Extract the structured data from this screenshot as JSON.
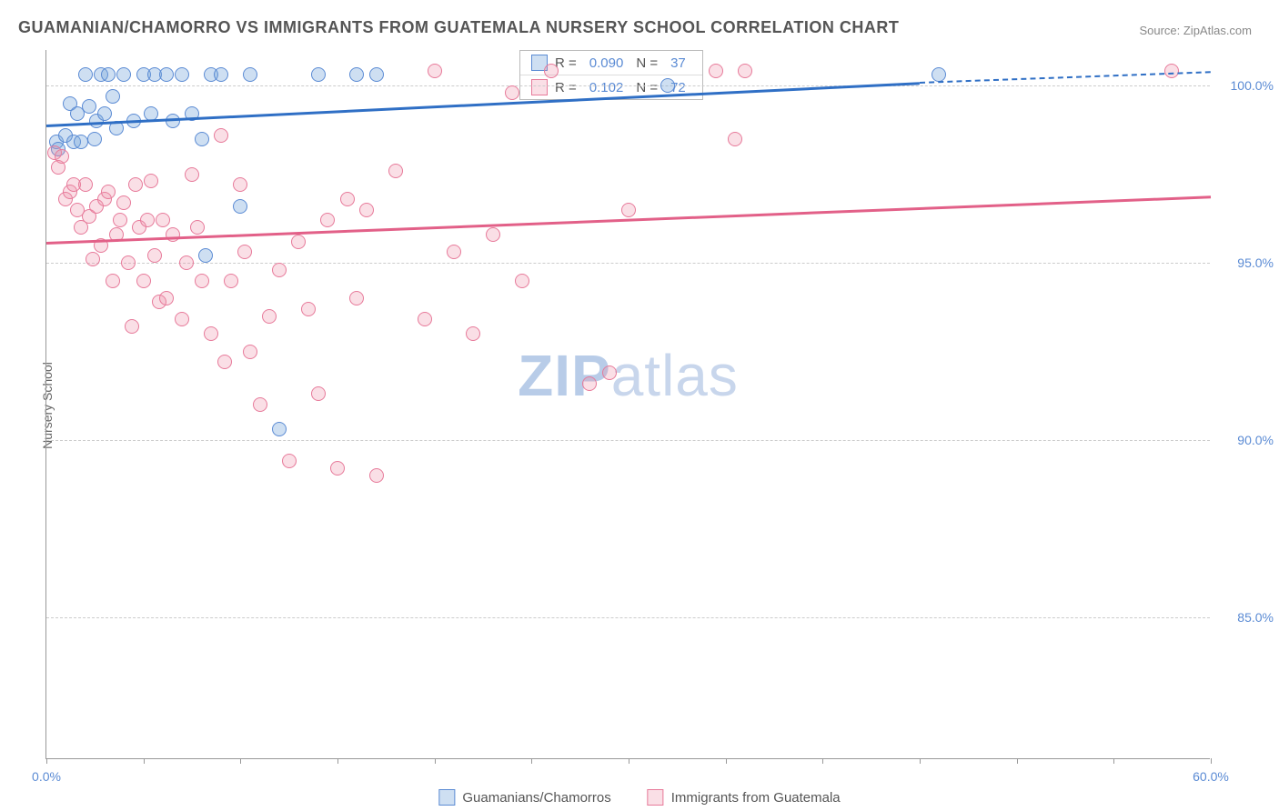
{
  "title": "GUAMANIAN/CHAMORRO VS IMMIGRANTS FROM GUATEMALA NURSERY SCHOOL CORRELATION CHART",
  "source_label": "Source: ",
  "source_link": "ZipAtlas.com",
  "y_axis_label": "Nursery School",
  "watermark_bold": "ZIP",
  "watermark_rest": "atlas",
  "plot": {
    "x_min": 0.0,
    "x_max": 60.0,
    "y_min": 81.0,
    "y_max": 101.0,
    "x_ticks": [
      0.0,
      5,
      10,
      15,
      20,
      25,
      30,
      35,
      40,
      45,
      50,
      55,
      60.0
    ],
    "y_gridlines": [
      85.0,
      90.0,
      95.0,
      100.0
    ],
    "x_tick_labels": [
      {
        "value": 0.0,
        "label": "0.0%"
      },
      {
        "value": 60.0,
        "label": "60.0%"
      }
    ],
    "y_tick_labels": [
      {
        "value": 85.0,
        "label": "85.0%"
      },
      {
        "value": 90.0,
        "label": "90.0%"
      },
      {
        "value": 95.0,
        "label": "95.0%"
      },
      {
        "value": 100.0,
        "label": "100.0%"
      }
    ]
  },
  "colors": {
    "blue_fill": "rgba(116,164,218,0.35)",
    "blue_stroke": "#5b8bd4",
    "pink_fill": "rgba(238,140,165,0.28)",
    "pink_stroke": "#e77a9a",
    "blue_line": "#2f6fc5",
    "pink_line": "#e26088",
    "title_color": "#555555",
    "axis_label_color": "#5b8bd4"
  },
  "series": [
    {
      "key": "blue",
      "legend_label": "Guamanians/Chamorros",
      "stats": {
        "R_label": "R =",
        "R": "0.090",
        "N_label": "N =",
        "N": "37"
      },
      "trend": {
        "y_at_x0": 98.9,
        "y_at_x45": 100.1,
        "dash_to_x": 60,
        "dash_to_y": 100.4
      },
      "points": [
        [
          0.5,
          98.4
        ],
        [
          0.6,
          98.2
        ],
        [
          1.0,
          98.6
        ],
        [
          1.2,
          99.5
        ],
        [
          1.4,
          98.4
        ],
        [
          1.6,
          99.2
        ],
        [
          1.8,
          98.4
        ],
        [
          2.0,
          100.3
        ],
        [
          2.2,
          99.4
        ],
        [
          2.5,
          98.5
        ],
        [
          2.6,
          99.0
        ],
        [
          2.8,
          100.3
        ],
        [
          3.0,
          99.2
        ],
        [
          3.2,
          100.3
        ],
        [
          3.4,
          99.7
        ],
        [
          3.6,
          98.8
        ],
        [
          4.0,
          100.3
        ],
        [
          4.5,
          99.0
        ],
        [
          5.0,
          100.3
        ],
        [
          5.4,
          99.2
        ],
        [
          5.6,
          100.3
        ],
        [
          6.2,
          100.3
        ],
        [
          6.5,
          99.0
        ],
        [
          7.0,
          100.3
        ],
        [
          7.5,
          99.2
        ],
        [
          8.0,
          98.5
        ],
        [
          8.2,
          95.2
        ],
        [
          8.5,
          100.3
        ],
        [
          9.0,
          100.3
        ],
        [
          10.0,
          96.6
        ],
        [
          10.5,
          100.3
        ],
        [
          12.0,
          90.3
        ],
        [
          14.0,
          100.3
        ],
        [
          16.0,
          100.3
        ],
        [
          17.0,
          100.3
        ],
        [
          32.0,
          100.0
        ],
        [
          46.0,
          100.3
        ]
      ]
    },
    {
      "key": "pink",
      "legend_label": "Immigrants from Guatemala",
      "stats": {
        "R_label": "R =",
        "R": "0.102",
        "N_label": "N =",
        "N": "72"
      },
      "trend": {
        "y_at_x0": 95.6,
        "y_at_x60": 96.9
      },
      "points": [
        [
          0.4,
          98.1
        ],
        [
          0.6,
          97.7
        ],
        [
          0.8,
          98.0
        ],
        [
          1.0,
          96.8
        ],
        [
          1.2,
          97.0
        ],
        [
          1.4,
          97.2
        ],
        [
          1.6,
          96.5
        ],
        [
          1.8,
          96.0
        ],
        [
          2.0,
          97.2
        ],
        [
          2.2,
          96.3
        ],
        [
          2.4,
          95.1
        ],
        [
          2.6,
          96.6
        ],
        [
          2.8,
          95.5
        ],
        [
          3.0,
          96.8
        ],
        [
          3.2,
          97.0
        ],
        [
          3.4,
          94.5
        ],
        [
          3.6,
          95.8
        ],
        [
          3.8,
          96.2
        ],
        [
          4.0,
          96.7
        ],
        [
          4.2,
          95.0
        ],
        [
          4.4,
          93.2
        ],
        [
          4.6,
          97.2
        ],
        [
          4.8,
          96.0
        ],
        [
          5.0,
          94.5
        ],
        [
          5.2,
          96.2
        ],
        [
          5.4,
          97.3
        ],
        [
          5.6,
          95.2
        ],
        [
          5.8,
          93.9
        ],
        [
          6.0,
          96.2
        ],
        [
          6.2,
          94.0
        ],
        [
          6.5,
          95.8
        ],
        [
          7.0,
          93.4
        ],
        [
          7.2,
          95.0
        ],
        [
          7.5,
          97.5
        ],
        [
          7.8,
          96.0
        ],
        [
          8.0,
          94.5
        ],
        [
          8.5,
          93.0
        ],
        [
          9.0,
          98.6
        ],
        [
          9.2,
          92.2
        ],
        [
          9.5,
          94.5
        ],
        [
          10.0,
          97.2
        ],
        [
          10.2,
          95.3
        ],
        [
          10.5,
          92.5
        ],
        [
          11.0,
          91.0
        ],
        [
          11.5,
          93.5
        ],
        [
          12.0,
          94.8
        ],
        [
          12.5,
          89.4
        ],
        [
          13.0,
          95.6
        ],
        [
          13.5,
          93.7
        ],
        [
          14.0,
          91.3
        ],
        [
          14.5,
          96.2
        ],
        [
          15.0,
          89.2
        ],
        [
          15.5,
          96.8
        ],
        [
          16.0,
          94.0
        ],
        [
          16.5,
          96.5
        ],
        [
          17.0,
          89.0
        ],
        [
          18.0,
          97.6
        ],
        [
          19.5,
          93.4
        ],
        [
          20.0,
          100.4
        ],
        [
          21.0,
          95.3
        ],
        [
          22.0,
          93.0
        ],
        [
          23.0,
          95.8
        ],
        [
          24.0,
          99.8
        ],
        [
          24.5,
          94.5
        ],
        [
          26.0,
          100.4
        ],
        [
          28.0,
          91.6
        ],
        [
          29.0,
          91.9
        ],
        [
          30.0,
          96.5
        ],
        [
          34.5,
          100.4
        ],
        [
          35.5,
          98.5
        ],
        [
          36.0,
          100.4
        ],
        [
          58.0,
          100.4
        ]
      ]
    }
  ],
  "bottom_legend": [
    {
      "key": "blue",
      "label": "Guamanians/Chamorros"
    },
    {
      "key": "pink",
      "label": "Immigrants from Guatemala"
    }
  ]
}
